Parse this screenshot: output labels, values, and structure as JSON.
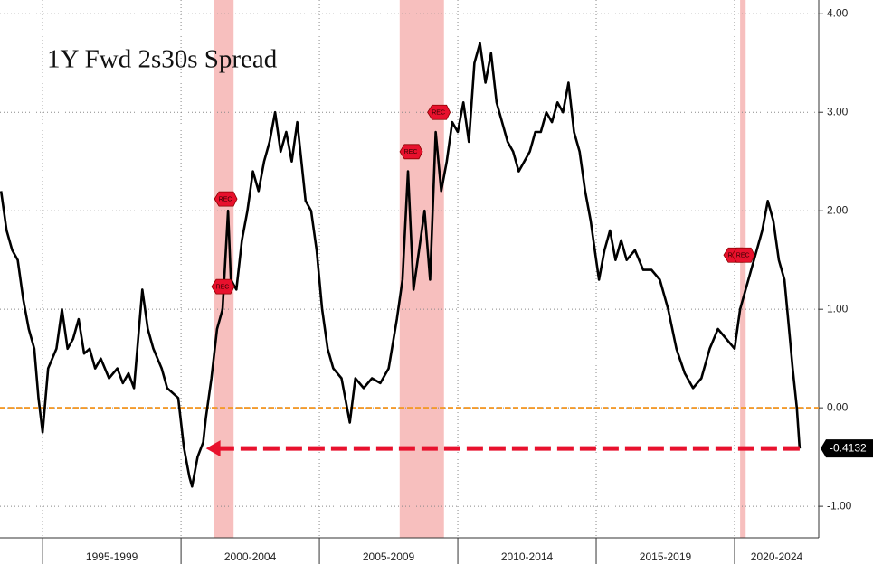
{
  "chart_data": {
    "type": "line",
    "title": "1Y Fwd 2s30s Spread",
    "color": "#000000",
    "x": [
      1993.5,
      1993.7,
      1993.9,
      1994.1,
      1994.3,
      1994.5,
      1994.7,
      1994.85,
      1995.0,
      1995.2,
      1995.5,
      1995.7,
      1995.9,
      1996.1,
      1996.3,
      1996.5,
      1996.7,
      1996.9,
      1997.1,
      1997.4,
      1997.7,
      1997.9,
      1998.1,
      1998.3,
      1998.6,
      1998.8,
      1999.0,
      1999.3,
      1999.5,
      1999.7,
      1999.9,
      2000.1,
      2000.3,
      2000.4,
      2000.6,
      2000.8,
      2000.9,
      2001.1,
      2001.3,
      2001.5,
      2001.7,
      2001.8,
      2002.0,
      2002.2,
      2002.4,
      2002.6,
      2002.8,
      2003.0,
      2003.2,
      2003.4,
      2003.6,
      2003.8,
      2004.0,
      2004.2,
      2004.5,
      2004.7,
      2004.9,
      2005.1,
      2005.3,
      2005.5,
      2005.8,
      2006.1,
      2006.3,
      2006.6,
      2006.9,
      2007.2,
      2007.5,
      2007.8,
      2008.0,
      2008.2,
      2008.4,
      2008.6,
      2008.8,
      2009.0,
      2009.2,
      2009.4,
      2009.6,
      2009.8,
      2010.0,
      2010.2,
      2010.4,
      2010.6,
      2010.8,
      2011.0,
      2011.2,
      2011.4,
      2011.6,
      2011.8,
      2012.0,
      2012.2,
      2012.4,
      2012.6,
      2012.8,
      2013.0,
      2013.2,
      2013.4,
      2013.6,
      2013.8,
      2014.0,
      2014.2,
      2014.4,
      2014.6,
      2014.8,
      2015.0,
      2015.1,
      2015.3,
      2015.5,
      2015.7,
      2015.9,
      2016.1,
      2016.4,
      2016.7,
      2017.0,
      2017.3,
      2017.6,
      2017.9,
      2018.2,
      2018.5,
      2018.8,
      2019.1,
      2019.4,
      2019.7,
      2020.0,
      2020.2,
      2020.4,
      2020.6,
      2020.8,
      2021.0,
      2021.2,
      2021.4,
      2021.6,
      2021.8,
      2022.0,
      2022.1,
      2022.25,
      2022.35
    ],
    "values": [
      2.2,
      1.8,
      1.6,
      1.5,
      1.1,
      0.8,
      0.6,
      0.1,
      -0.25,
      0.4,
      0.6,
      1.0,
      0.6,
      0.7,
      0.9,
      0.55,
      0.6,
      0.4,
      0.5,
      0.3,
      0.4,
      0.25,
      0.35,
      0.2,
      1.2,
      0.8,
      0.6,
      0.4,
      0.2,
      0.15,
      0.1,
      -0.4,
      -0.7,
      -0.8,
      -0.5,
      -0.35,
      -0.1,
      0.3,
      0.8,
      1.0,
      2.0,
      1.3,
      1.2,
      1.7,
      2.0,
      2.4,
      2.2,
      2.5,
      2.7,
      3.0,
      2.6,
      2.8,
      2.5,
      2.9,
      2.1,
      2.0,
      1.6,
      1.0,
      0.6,
      0.4,
      0.3,
      -0.15,
      0.3,
      0.2,
      0.3,
      0.25,
      0.4,
      0.9,
      1.3,
      2.4,
      1.2,
      1.6,
      2.0,
      1.3,
      2.8,
      2.2,
      2.5,
      2.9,
      2.8,
      3.1,
      2.7,
      3.5,
      3.7,
      3.3,
      3.6,
      3.1,
      2.9,
      2.7,
      2.6,
      2.4,
      2.5,
      2.6,
      2.8,
      2.8,
      3.0,
      2.9,
      3.1,
      3.0,
      3.3,
      2.8,
      2.6,
      2.2,
      1.9,
      1.5,
      1.3,
      1.6,
      1.8,
      1.5,
      1.7,
      1.5,
      1.6,
      1.4,
      1.4,
      1.3,
      1.0,
      0.6,
      0.35,
      0.2,
      0.3,
      0.6,
      0.8,
      0.7,
      0.6,
      1.0,
      1.2,
      1.4,
      1.6,
      1.8,
      2.1,
      1.9,
      1.5,
      1.3,
      0.7,
      0.4,
      0.0,
      -0.4132
    ],
    "xlim": [
      1993.46,
      2023.04
    ],
    "xticks": [
      1995,
      2000,
      2005,
      2010,
      2015,
      2020
    ],
    "x_labels": [
      "1995-1999",
      "2000-2004",
      "2005-2009",
      "2010-2014",
      "2015-2019",
      "2020-2024"
    ],
    "ylim": [
      -1.32,
      4.14
    ],
    "yticks": [
      {
        "value": -1,
        "label": "-1.00"
      },
      {
        "value": 0,
        "label": "0.00"
      },
      {
        "value": 1,
        "label": "1.00"
      },
      {
        "value": 2,
        "label": "2.00"
      },
      {
        "value": 3,
        "label": "3.00"
      },
      {
        "value": 4,
        "label": "4.00"
      }
    ],
    "grid": true,
    "recessions": [
      [
        2001.2,
        2001.9
      ],
      [
        2007.9,
        2009.5
      ],
      [
        2020.2,
        2020.4
      ]
    ],
    "recession_color": "#f4a9a8",
    "reference_line": {
      "y": 0,
      "color": "#f39a2b"
    },
    "arrow": {
      "to_x": 2000.9,
      "color": "#e8112d"
    },
    "annotations": [
      {
        "text": "REC",
        "x": 2001.6,
        "y": 2.12
      },
      {
        "text": "REC",
        "x": 2001.5,
        "y": 1.23
      },
      {
        "text": "REC",
        "x": 2008.3,
        "y": 2.6
      },
      {
        "text": "REC",
        "x": 2009.3,
        "y": 3.0
      },
      {
        "text": "REC",
        "x": 2020.0,
        "y": 1.55
      },
      {
        "text": "REC",
        "x": 2020.3,
        "y": 1.55
      }
    ]
  }
}
